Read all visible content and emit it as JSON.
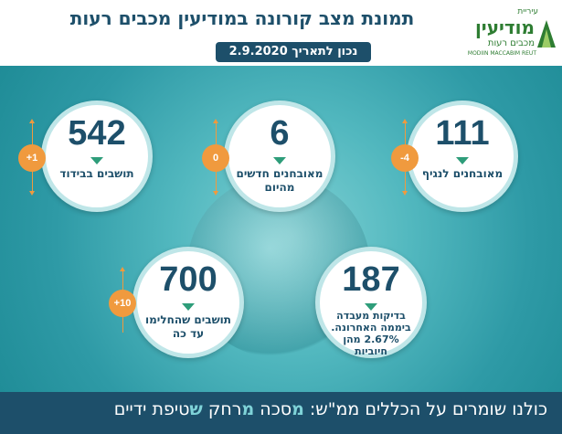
{
  "header": {
    "title": "תמונת מצב קורונה במודיעין מכבים רעות",
    "date": "נכון לתאריך 2.9.2020"
  },
  "logo": {
    "line1": "עיריית",
    "line2": "מודיעין",
    "line3": "מכבים רעות",
    "line4": "MODIIN MACCABIM REUT"
  },
  "cards": {
    "diagnosed": {
      "value": "111",
      "label": "מאובחנים לנגיף",
      "change": "-4"
    },
    "new_today": {
      "value": "6",
      "label": "מאובחנים חדשים מהיום",
      "change": "0"
    },
    "isolation": {
      "value": "542",
      "label": "תושבים בבידוד",
      "change": "+1"
    },
    "tests": {
      "value": "187",
      "label": "בדיקות מעבדה ביממה האחרונה. 2.67% מהן חיוביות"
    },
    "recovered": {
      "value": "700",
      "label": "תושבים שהחלימו עד כה",
      "change": "+10"
    }
  },
  "footer": {
    "intro": "כולנו שומרים על הכללים ממ\"ש:",
    "m1": "מ",
    "w1": "סכה",
    "m2": "מ",
    "w2": "רחק",
    "m3": "ש",
    "w3": "טיפת ידיים"
  },
  "colors": {
    "navy": "#1d4f6a",
    "teal": "#52b8bf",
    "orange": "#f09a3e",
    "green": "#2e9d7a",
    "logo_green": "#2e7d32"
  }
}
